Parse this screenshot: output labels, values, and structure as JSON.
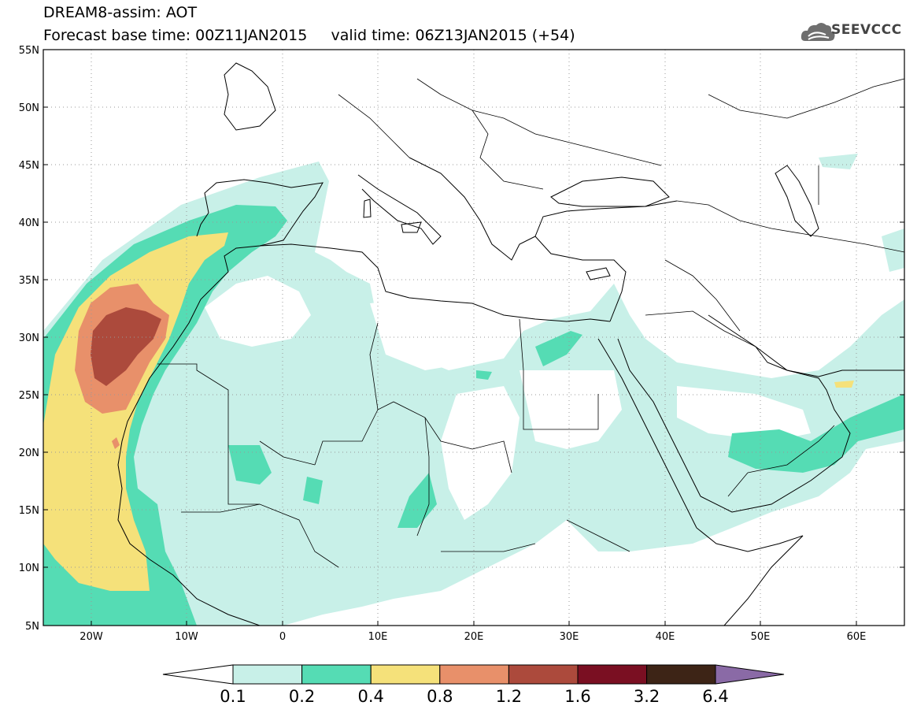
{
  "title": {
    "line1": "DREAM8-assim: AOT",
    "line2": "Forecast base time: 00Z11JAN2015     valid time: 06Z13JAN2015 (+54)"
  },
  "logo": {
    "text": "SEEVCCC",
    "icon": "cloud-icon"
  },
  "axes": {
    "lat_labels": [
      "55N",
      "50N",
      "45N",
      "40N",
      "35N",
      "30N",
      "25N",
      "20N",
      "15N",
      "10N",
      "5N"
    ],
    "lon_labels": [
      "20W",
      "10W",
      "0",
      "10E",
      "20E",
      "30E",
      "40E",
      "50E",
      "60E"
    ],
    "lat_range": [
      5,
      55
    ],
    "lon_range": [
      -25,
      65
    ]
  },
  "legend": {
    "labels": [
      "0.1",
      "0.2",
      "0.4",
      "0.8",
      "1.2",
      "1.6",
      "3.2",
      "6.4"
    ],
    "colors": [
      "#c8f0e8",
      "#55dcb4",
      "#f5e17a",
      "#e8906a",
      "#ac4a3c",
      "#7a0f22",
      "#3d2416",
      "#8a6aa6"
    ]
  },
  "colors": {
    "c01": "#c8f0e8",
    "c02": "#55dcb4",
    "c04": "#f5e17a",
    "c08": "#e8906a",
    "c12": "#ac4a3c",
    "border": "#000000",
    "grid": "#999999"
  }
}
